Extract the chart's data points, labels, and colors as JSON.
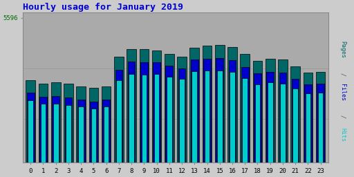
{
  "title": "Hourly usage for January 2019",
  "title_color": "#0000cc",
  "title_fontsize": 9.5,
  "hours": [
    0,
    1,
    2,
    3,
    4,
    5,
    6,
    7,
    8,
    9,
    10,
    11,
    12,
    13,
    14,
    15,
    16,
    17,
    18,
    19,
    20,
    21,
    22,
    23
  ],
  "pages": [
    3200,
    3050,
    3100,
    3050,
    2950,
    2900,
    2950,
    4100,
    4400,
    4380,
    4350,
    4200,
    4100,
    4450,
    4520,
    4560,
    4480,
    4200,
    3950,
    4020,
    3980,
    3720,
    3480,
    3500
  ],
  "files": [
    2700,
    2550,
    2560,
    2520,
    2440,
    2350,
    2440,
    3600,
    3900,
    3880,
    3870,
    3750,
    3650,
    4000,
    4020,
    4050,
    3960,
    3700,
    3450,
    3520,
    3470,
    3250,
    3020,
    3050
  ],
  "hits": [
    2400,
    2270,
    2270,
    2230,
    2160,
    2090,
    2160,
    3180,
    3420,
    3390,
    3430,
    3330,
    3240,
    3530,
    3560,
    3570,
    3500,
    3270,
    3040,
    3110,
    3060,
    2880,
    2680,
    2710
  ],
  "pages_color": "#006666",
  "files_color": "#0000cc",
  "hits_color": "#00cccc",
  "ylabel_color_pages": "#006666",
  "ylabel_color_files": "#0000cc",
  "ylabel_color_hits": "#00cccc",
  "ytick_label": "5596",
  "ytick_label_color": "#006600",
  "bg_color": "#cccccc",
  "plot_bg_color": "#aaaaaa",
  "border_color": "#888888",
  "ymax": 5800,
  "ytick_pos": 5596,
  "bar_width": 0.75
}
